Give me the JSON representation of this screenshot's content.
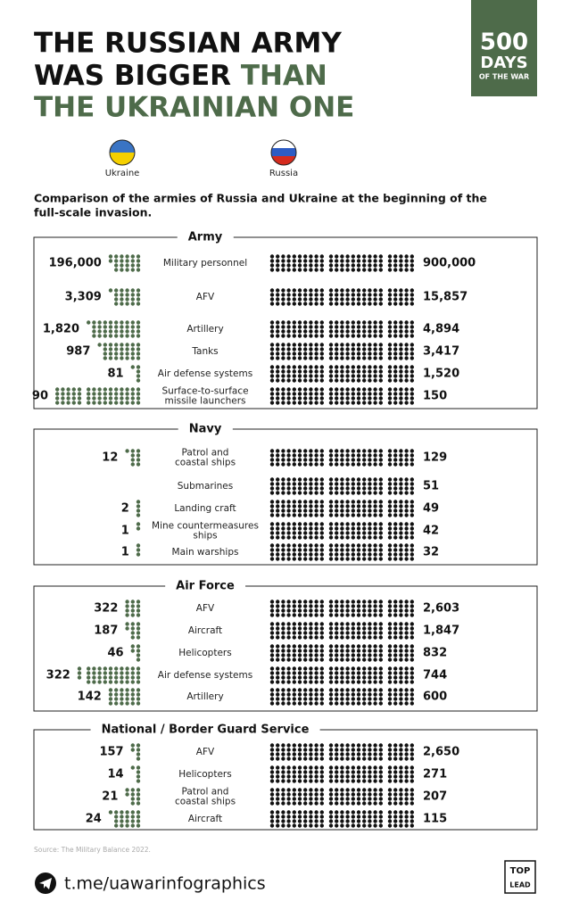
{
  "header": {
    "title_line1": "THE RUSSIAN ARMY",
    "title_line2a": "WAS BIGGER",
    "title_line2b": "THAN",
    "title_line3": "THE UKRAINIAN ONE",
    "badge": [
      "500",
      "DAYS",
      "OF THE WAR"
    ]
  },
  "legend": {
    "ukraine": "Ukraine",
    "russia": "Russia"
  },
  "subtitle": [
    "Comparison of the armies of Russia and Ukraine at the beginning of the",
    "full-scale invasion."
  ],
  "sections": [
    {
      "title": "Army",
      "rows": [
        {
          "label": [
            "Military personnel"
          ],
          "ukraine": {
            "value": 196000,
            "label": "196,000"
          },
          "russia": {
            "value": 900000,
            "label": "900,000"
          }
        },
        {
          "label": [
            "AFV"
          ],
          "ukraine": {
            "value": 3309,
            "label": "3,309"
          },
          "russia": {
            "value": 15857,
            "label": "15,857"
          }
        },
        {
          "label": [
            "Artillery"
          ],
          "ukraine": {
            "value": 1820,
            "label": "1,820"
          },
          "russia": {
            "value": 4894,
            "label": "4,894"
          }
        },
        {
          "label": [
            "Tanks"
          ],
          "ukraine": {
            "value": 987,
            "label": "987"
          },
          "russia": {
            "value": 3417,
            "label": "3,417"
          }
        },
        {
          "label": [
            "Air defense systems"
          ],
          "ukraine": {
            "value": 81,
            "label": "81"
          },
          "russia": {
            "value": 1520,
            "label": "1,520"
          }
        },
        {
          "label": [
            "Surface-to-surface",
            "missile launchers"
          ],
          "ukraine": {
            "value": 90,
            "label": "90"
          },
          "russia": {
            "value": 150,
            "label": "150"
          }
        }
      ]
    },
    {
      "title": "Navy",
      "rows": [
        {
          "label": [
            "Patrol and",
            "coastal ships"
          ],
          "ukraine": {
            "value": 12,
            "label": "12"
          },
          "russia": {
            "value": 129,
            "label": "129"
          }
        },
        {
          "label": [
            "Submarines"
          ],
          "ukraine": null,
          "russia": {
            "value": 51,
            "label": "51"
          }
        },
        {
          "label": [
            "Landing craft"
          ],
          "ukraine": {
            "value": 2,
            "label": "2"
          },
          "russia": {
            "value": 49,
            "label": "49"
          }
        },
        {
          "label": [
            "Mine countermeasures",
            "ships"
          ],
          "ukraine": {
            "value": 1,
            "label": "1"
          },
          "russia": {
            "value": 42,
            "label": "42"
          }
        },
        {
          "label": [
            "Main warships"
          ],
          "ukraine": {
            "value": 1,
            "label": "1"
          },
          "russia": {
            "value": 32,
            "label": "32"
          }
        }
      ]
    },
    {
      "title": "Air Force",
      "rows": [
        {
          "label": [
            "AFV"
          ],
          "ukraine": {
            "value": 322,
            "label": "322"
          },
          "russia": {
            "value": 2603,
            "label": "2,603"
          }
        },
        {
          "label": [
            "Aircraft"
          ],
          "ukraine": {
            "value": 187,
            "label": "187"
          },
          "russia": {
            "value": 1847,
            "label": "1,847"
          }
        },
        {
          "label": [
            "Helicopters"
          ],
          "ukraine": {
            "value": 46,
            "label": "46"
          },
          "russia": {
            "value": 832,
            "label": "832"
          }
        },
        {
          "label": [
            "Air defense systems"
          ],
          "ukraine": {
            "value": 322,
            "label": "322"
          },
          "russia": {
            "value": 744,
            "label": "744"
          }
        },
        {
          "label": [
            "Artillery"
          ],
          "ukraine": {
            "value": 142,
            "label": "142"
          },
          "russia": {
            "value": 600,
            "label": "600"
          }
        }
      ]
    },
    {
      "title": "National / Border Guard Service",
      "rows": [
        {
          "label": [
            "AFV"
          ],
          "ukraine": {
            "value": 157,
            "label": "157"
          },
          "russia": {
            "value": 2650,
            "label": "2,650"
          }
        },
        {
          "label": [
            "Helicopters"
          ],
          "ukraine": {
            "value": 14,
            "label": "14"
          },
          "russia": {
            "value": 271,
            "label": "271"
          }
        },
        {
          "label": [
            "Patrol and",
            "coastal ships"
          ],
          "ukraine": {
            "value": 21,
            "label": "21"
          },
          "russia": {
            "value": 207,
            "label": "207"
          }
        },
        {
          "label": [
            "Aircraft"
          ],
          "ukraine": {
            "value": 24,
            "label": "24"
          },
          "russia": {
            "value": 115,
            "label": "115"
          }
        }
      ]
    }
  ],
  "footer": {
    "source": "Source: The Military Balance 2022.",
    "link": "t.me/uawarinfographics",
    "logo": [
      "TOP",
      "LEAD"
    ]
  }
}
